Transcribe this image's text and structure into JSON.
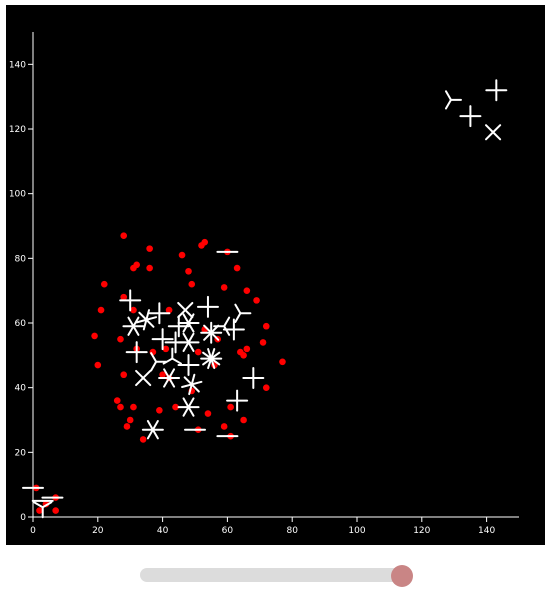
{
  "colors": {
    "background": "#000000",
    "axis": "#ffffff",
    "dot": "#ff0000",
    "glyph": "#ffffff",
    "slider_track": "#dcdcdc",
    "slider_thumb": "#c98585"
  },
  "slider": {
    "value": 1.0
  },
  "chart_data": {
    "type": "scatter",
    "title": "",
    "xlabel": "",
    "ylabel": "",
    "xlim": [
      0,
      150
    ],
    "ylim": [
      0,
      150
    ],
    "x_ticks": [
      0,
      20,
      40,
      60,
      80,
      100,
      120,
      140
    ],
    "y_ticks": [
      0,
      20,
      40,
      60,
      80,
      100,
      120,
      140
    ],
    "x_tick_labels": [
      "0",
      "20",
      "40",
      "60",
      "80",
      "100",
      "120",
      "140"
    ],
    "y_tick_labels": [
      "0",
      "20",
      "40",
      "60",
      "80",
      "100",
      "120",
      "140"
    ],
    "grid": false,
    "points": [
      [
        28,
        87
      ],
      [
        36,
        83
      ],
      [
        46,
        81
      ],
      [
        52,
        84
      ],
      [
        53,
        85
      ],
      [
        60,
        82
      ],
      [
        32,
        78
      ],
      [
        31,
        77
      ],
      [
        36,
        77
      ],
      [
        48,
        76
      ],
      [
        63,
        77
      ],
      [
        22,
        72
      ],
      [
        49,
        72
      ],
      [
        59,
        71
      ],
      [
        66,
        70
      ],
      [
        28,
        68
      ],
      [
        69,
        67
      ],
      [
        42,
        64
      ],
      [
        21,
        64
      ],
      [
        31,
        64
      ],
      [
        72,
        59
      ],
      [
        19,
        56
      ],
      [
        27,
        55
      ],
      [
        57,
        55
      ],
      [
        71,
        54
      ],
      [
        32,
        52
      ],
      [
        37,
        51
      ],
      [
        65,
        50
      ],
      [
        64,
        51
      ],
      [
        66,
        52
      ],
      [
        20,
        47
      ],
      [
        56,
        47
      ],
      [
        77,
        48
      ],
      [
        28,
        44
      ],
      [
        40,
        44
      ],
      [
        42,
        43
      ],
      [
        72,
        40
      ],
      [
        49,
        39
      ],
      [
        26,
        36
      ],
      [
        31,
        34
      ],
      [
        27,
        34
      ],
      [
        61,
        34
      ],
      [
        39,
        33
      ],
      [
        54,
        32
      ],
      [
        44,
        34
      ],
      [
        29,
        28
      ],
      [
        30,
        30
      ],
      [
        65,
        30
      ],
      [
        59,
        28
      ],
      [
        51,
        27
      ],
      [
        34,
        24
      ],
      [
        61,
        25
      ],
      [
        1,
        9
      ],
      [
        2,
        2
      ],
      [
        4,
        4
      ],
      [
        7,
        6
      ],
      [
        7,
        2
      ],
      [
        51,
        51
      ],
      [
        53,
        58
      ],
      [
        41,
        52
      ]
    ],
    "glyphs": [
      {
        "x": 0,
        "y": 9,
        "n": 2,
        "a": 0
      },
      {
        "x": 3,
        "y": 5,
        "n": 2,
        "a": 0
      },
      {
        "x": 6,
        "y": 6,
        "n": 2,
        "a": 0
      },
      {
        "x": 3,
        "y": 3,
        "n": 3,
        "a": 30
      },
      {
        "x": 30,
        "y": 67,
        "n": 4,
        "a": 0
      },
      {
        "x": 39,
        "y": 63,
        "n": 4,
        "a": 0
      },
      {
        "x": 35,
        "y": 61,
        "n": 6,
        "a": 15
      },
      {
        "x": 31,
        "y": 59,
        "n": 6,
        "a": 0
      },
      {
        "x": 47,
        "y": 64,
        "n": 4,
        "a": 45
      },
      {
        "x": 54,
        "y": 65,
        "n": 4,
        "a": 0
      },
      {
        "x": 64,
        "y": 63,
        "n": 3,
        "a": 0
      },
      {
        "x": 48,
        "y": 60,
        "n": 6,
        "a": 0
      },
      {
        "x": 45,
        "y": 59,
        "n": 4,
        "a": 0
      },
      {
        "x": 55,
        "y": 57,
        "n": 8,
        "a": 0
      },
      {
        "x": 62,
        "y": 58,
        "n": 4,
        "a": 0
      },
      {
        "x": 59,
        "y": 59,
        "n": 3,
        "a": 60
      },
      {
        "x": 40,
        "y": 55,
        "n": 4,
        "a": 0
      },
      {
        "x": 48,
        "y": 54,
        "n": 6,
        "a": 0
      },
      {
        "x": 44,
        "y": 54,
        "n": 4,
        "a": 0
      },
      {
        "x": 32,
        "y": 51,
        "n": 4,
        "a": 0
      },
      {
        "x": 38,
        "y": 48,
        "n": 3,
        "a": 0
      },
      {
        "x": 43,
        "y": 49,
        "n": 3,
        "a": 90
      },
      {
        "x": 55,
        "y": 49,
        "n": 10,
        "a": 0
      },
      {
        "x": 48,
        "y": 47,
        "n": 4,
        "a": 0
      },
      {
        "x": 34,
        "y": 43,
        "n": 4,
        "a": 45
      },
      {
        "x": 42,
        "y": 43,
        "n": 6,
        "a": 0
      },
      {
        "x": 49,
        "y": 41,
        "n": 6,
        "a": 15
      },
      {
        "x": 68,
        "y": 43,
        "n": 4,
        "a": 0
      },
      {
        "x": 63,
        "y": 36,
        "n": 4,
        "a": 0
      },
      {
        "x": 48,
        "y": 34,
        "n": 6,
        "a": 0
      },
      {
        "x": 50,
        "y": 27,
        "n": 2,
        "a": 0
      },
      {
        "x": 37,
        "y": 27,
        "n": 6,
        "a": 0
      },
      {
        "x": 60,
        "y": 25,
        "n": 2,
        "a": 0
      },
      {
        "x": 60,
        "y": 82,
        "n": 2,
        "a": 0
      },
      {
        "x": 129,
        "y": 129,
        "n": 3,
        "a": 0
      },
      {
        "x": 143,
        "y": 132,
        "n": 4,
        "a": 0
      },
      {
        "x": 135,
        "y": 124,
        "n": 4,
        "a": 0
      },
      {
        "x": 142,
        "y": 119,
        "n": 4,
        "a": 45
      }
    ]
  }
}
